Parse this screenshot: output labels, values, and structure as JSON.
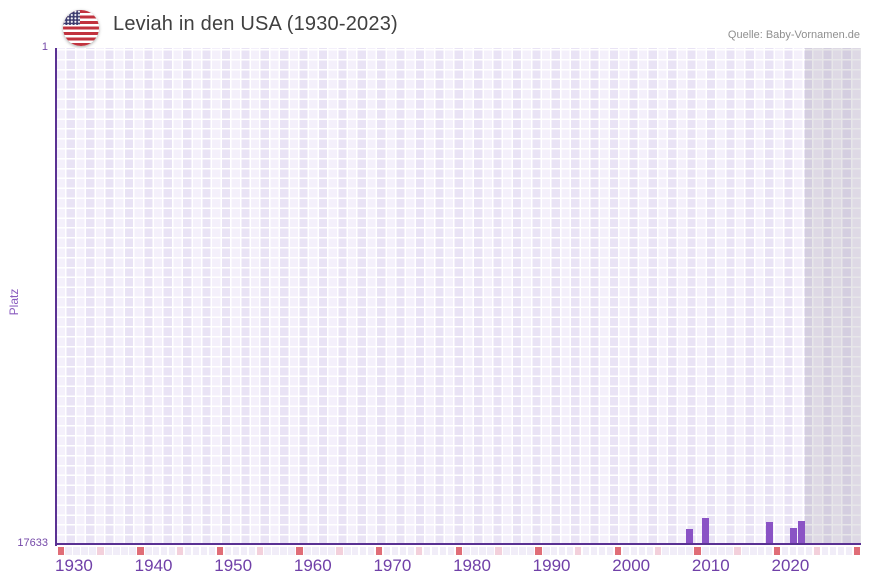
{
  "header": {
    "title": "Leviah in den USA (1930-2023)",
    "source": "Quelle: Baby-Vornamen.de",
    "flag_icon": "us-flag"
  },
  "chart_data": {
    "type": "bar",
    "title": "Leviah in den USA (1930-2023)",
    "xlabel": "",
    "ylabel": "Platz",
    "y_axis": {
      "min": 1,
      "max": 17633,
      "inverted": true,
      "top_tick_label": "1",
      "bottom_tick_label": "17633"
    },
    "x_axis": {
      "start": 1930,
      "end": 2030,
      "data_end": 2023,
      "major_tick_every": 10,
      "minor_tick_every": 5,
      "tick_labels": [
        "1930",
        "1940",
        "1950",
        "1960",
        "1970",
        "1980",
        "1990",
        "2000",
        "2010",
        "2020"
      ]
    },
    "grid": true,
    "legend": false,
    "series": [
      {
        "name": "Platz",
        "points": [
          {
            "year": 2009,
            "rank": 17100
          },
          {
            "year": 2011,
            "rank": 16710
          },
          {
            "year": 2019,
            "rank": 16850
          },
          {
            "year": 2022,
            "rank": 17065
          },
          {
            "year": 2023,
            "rank": 16815
          }
        ]
      }
    ],
    "colors": {
      "bar": "#8a53c5",
      "axis_line": "#5a3193",
      "tick_label": "#7040a8",
      "y_tick_label": "#7448a8",
      "y_axis_title": "#8a5bbf",
      "grid_light": "#f4f0fb",
      "grid_dark": "#e9e3f5",
      "grid_line": "#ffffff",
      "future_overlay": "rgba(110,108,125,0.17)",
      "major_tick_cell": "#e06d77",
      "minor_tick_cell": "#f3d0db",
      "default_tick_cell": "#f1edf8",
      "title_text": "#404040",
      "source_text": "#8f8f8f"
    }
  }
}
